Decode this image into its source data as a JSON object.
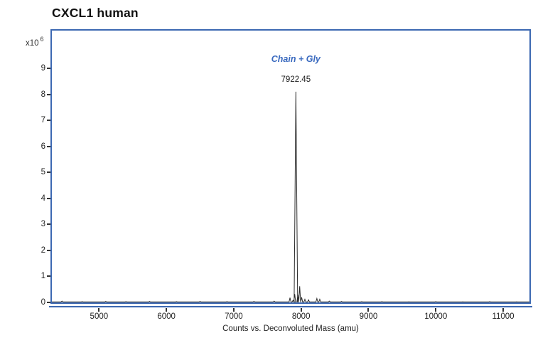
{
  "header": {
    "title": "CXCL1 human"
  },
  "chart_data": {
    "type": "line",
    "subtype": "deconvoluted-mass-spectrum",
    "title": "CXCL1 human",
    "xlabel": "Counts vs. Deconvoluted Mass (amu)",
    "ylabel": "",
    "y_unit_base": "x10",
    "y_unit_exp": "6",
    "xlim": [
      4300,
      11390
    ],
    "ylim": [
      0,
      10.45
    ],
    "xticks": [
      5000,
      6000,
      7000,
      8000,
      9000,
      10000,
      11000
    ],
    "yticks": [
      0,
      1,
      2,
      3,
      4,
      5,
      6,
      7,
      8,
      9
    ],
    "grid": false,
    "legend": null,
    "annotation": {
      "label": "Chain + Gly",
      "peak_label": "7922.45",
      "mass": 7922.45,
      "color": "#3A6ABF"
    },
    "main_peak": {
      "mass": 7922.45,
      "intensity_e6": 8.1
    },
    "peaks_mass_intensity_e6": [
      [
        4450,
        0.05
      ],
      [
        4750,
        0.03
      ],
      [
        5100,
        0.04
      ],
      [
        5400,
        0.03
      ],
      [
        5750,
        0.04
      ],
      [
        6150,
        0.03
      ],
      [
        6500,
        0.04
      ],
      [
        6900,
        0.03
      ],
      [
        7300,
        0.04
      ],
      [
        7600,
        0.05
      ],
      [
        7835,
        0.18
      ],
      [
        7880,
        0.08
      ],
      [
        7905,
        0.32
      ],
      [
        7922.45,
        8.1
      ],
      [
        7952,
        0.3
      ],
      [
        7979,
        0.62
      ],
      [
        8008,
        0.2
      ],
      [
        8056,
        0.12
      ],
      [
        8110,
        0.1
      ],
      [
        8234,
        0.15
      ],
      [
        8277,
        0.12
      ],
      [
        8420,
        0.05
      ],
      [
        8600,
        0.04
      ],
      [
        8900,
        0.03
      ],
      [
        9200,
        0.03
      ],
      [
        9600,
        0.025
      ],
      [
        10000,
        0.03
      ],
      [
        10400,
        0.025
      ],
      [
        10800,
        0.03
      ],
      [
        11200,
        0.025
      ]
    ],
    "baseline_e6": 0.02,
    "colors": {
      "frame": "#3C68B2",
      "line": "#2b2b2b",
      "text": "#222222",
      "annotation": "#3A6ABF"
    }
  }
}
